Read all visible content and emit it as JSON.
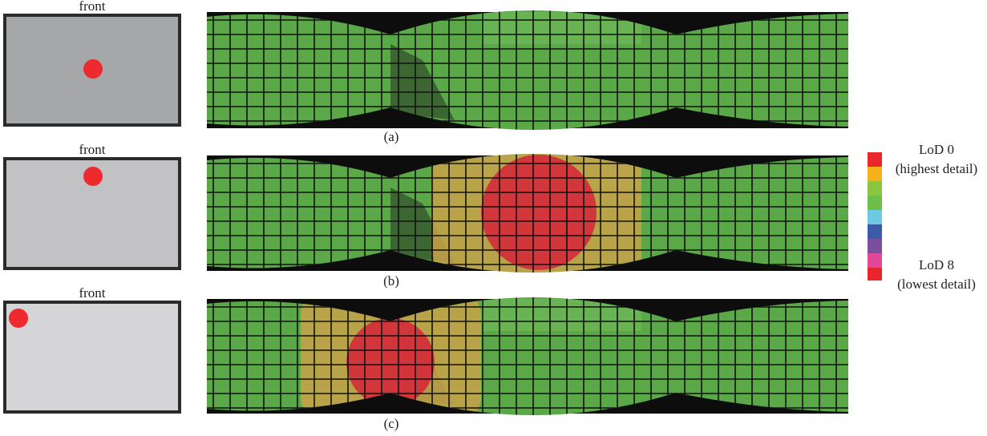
{
  "panels": [
    {
      "label": "front",
      "caption": "(a)"
    },
    {
      "label": "front",
      "caption": "(b)"
    },
    {
      "label": "front",
      "caption": "(c)"
    }
  ],
  "legend": {
    "top_label": "LoD 0",
    "top_note": "(highest detail)",
    "bottom_label": "LoD 8",
    "bottom_note": "(lowest detail)"
  }
}
